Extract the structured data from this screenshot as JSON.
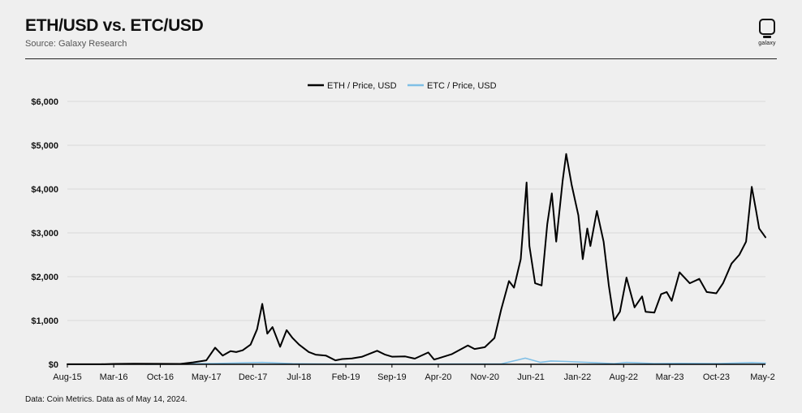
{
  "header": {
    "title": "ETH/USD vs. ETC/USD",
    "subtitle": "Source: Galaxy Research",
    "brand": "galaxy"
  },
  "footnote": "Data: Coin Metrics. Data as of May 14, 2024.",
  "colors": {
    "background": "#efefef",
    "eth": "#000000",
    "etc": "#7fbfe6",
    "grid": "#d8d8d8",
    "axis": "#000000"
  },
  "chart_data": {
    "type": "line",
    "title": "",
    "xlabel": "",
    "ylabel": "",
    "ylim": [
      0,
      6000
    ],
    "yticks": [
      0,
      1000,
      2000,
      3000,
      4000,
      5000,
      6000
    ],
    "ytick_labels": [
      "$0",
      "$1,000",
      "$2,000",
      "$3,000",
      "$4,000",
      "$5,000",
      "$6,000"
    ],
    "xlim": [
      "2015-08-01",
      "2024-05-14"
    ],
    "xticks": [
      "2015-08-01",
      "2016-03-01",
      "2016-10-01",
      "2017-05-01",
      "2017-12-01",
      "2018-07-01",
      "2019-02-01",
      "2019-09-01",
      "2020-04-01",
      "2020-11-01",
      "2021-06-01",
      "2022-01-01",
      "2022-08-01",
      "2023-03-01",
      "2023-10-01",
      "2024-05-01"
    ],
    "xtick_labels": [
      "Aug-15",
      "Mar-16",
      "Oct-16",
      "May-17",
      "Dec-17",
      "Jul-18",
      "Feb-19",
      "Sep-19",
      "Apr-20",
      "Nov-20",
      "Jun-21",
      "Jan-22",
      "Aug-22",
      "Mar-23",
      "Oct-23",
      "May-2"
    ],
    "grid": "horizontal",
    "legend": "top-center",
    "series": [
      {
        "name": "ETH / Price, USD",
        "color": "#000000",
        "points": [
          [
            "2015-08-01",
            1
          ],
          [
            "2016-01-01",
            1
          ],
          [
            "2016-03-01",
            10
          ],
          [
            "2016-06-01",
            14
          ],
          [
            "2016-10-01",
            12
          ],
          [
            "2017-01-01",
            10
          ],
          [
            "2017-03-01",
            45
          ],
          [
            "2017-05-01",
            90
          ],
          [
            "2017-06-10",
            380
          ],
          [
            "2017-07-15",
            200
          ],
          [
            "2017-08-20",
            300
          ],
          [
            "2017-09-15",
            280
          ],
          [
            "2017-10-15",
            320
          ],
          [
            "2017-11-20",
            450
          ],
          [
            "2017-12-20",
            800
          ],
          [
            "2018-01-13",
            1380
          ],
          [
            "2018-02-05",
            700
          ],
          [
            "2018-03-01",
            850
          ],
          [
            "2018-04-05",
            400
          ],
          [
            "2018-05-05",
            780
          ],
          [
            "2018-06-01",
            600
          ],
          [
            "2018-07-01",
            450
          ],
          [
            "2018-08-15",
            280
          ],
          [
            "2018-09-15",
            220
          ],
          [
            "2018-11-01",
            200
          ],
          [
            "2018-12-15",
            90
          ],
          [
            "2019-01-15",
            120
          ],
          [
            "2019-03-01",
            135
          ],
          [
            "2019-04-15",
            170
          ],
          [
            "2019-06-25",
            310
          ],
          [
            "2019-08-01",
            220
          ],
          [
            "2019-09-01",
            175
          ],
          [
            "2019-11-01",
            180
          ],
          [
            "2019-12-15",
            130
          ],
          [
            "2020-02-15",
            270
          ],
          [
            "2020-03-13",
            110
          ],
          [
            "2020-04-01",
            135
          ],
          [
            "2020-06-01",
            230
          ],
          [
            "2020-08-15",
            430
          ],
          [
            "2020-09-15",
            350
          ],
          [
            "2020-11-01",
            390
          ],
          [
            "2020-12-15",
            600
          ],
          [
            "2021-01-15",
            1250
          ],
          [
            "2021-02-20",
            1900
          ],
          [
            "2021-03-15",
            1750
          ],
          [
            "2021-04-15",
            2400
          ],
          [
            "2021-05-12",
            4150
          ],
          [
            "2021-05-25",
            2700
          ],
          [
            "2021-06-20",
            1850
          ],
          [
            "2021-07-20",
            1800
          ],
          [
            "2021-08-15",
            3200
          ],
          [
            "2021-09-05",
            3900
          ],
          [
            "2021-09-25",
            2800
          ],
          [
            "2021-10-25",
            4200
          ],
          [
            "2021-11-10",
            4800
          ],
          [
            "2021-12-05",
            4100
          ],
          [
            "2022-01-05",
            3400
          ],
          [
            "2022-01-25",
            2400
          ],
          [
            "2022-02-15",
            3100
          ],
          [
            "2022-03-01",
            2700
          ],
          [
            "2022-03-31",
            3500
          ],
          [
            "2022-05-01",
            2800
          ],
          [
            "2022-05-25",
            1800
          ],
          [
            "2022-06-18",
            1000
          ],
          [
            "2022-07-15",
            1200
          ],
          [
            "2022-08-14",
            1980
          ],
          [
            "2022-09-20",
            1300
          ],
          [
            "2022-10-25",
            1550
          ],
          [
            "2022-11-10",
            1200
          ],
          [
            "2022-12-20",
            1180
          ],
          [
            "2023-01-20",
            1600
          ],
          [
            "2023-02-15",
            1650
          ],
          [
            "2023-03-10",
            1450
          ],
          [
            "2023-04-15",
            2100
          ],
          [
            "2023-06-01",
            1850
          ],
          [
            "2023-07-15",
            1950
          ],
          [
            "2023-08-18",
            1650
          ],
          [
            "2023-10-01",
            1620
          ],
          [
            "2023-11-01",
            1850
          ],
          [
            "2023-12-10",
            2300
          ],
          [
            "2024-01-15",
            2500
          ],
          [
            "2024-02-15",
            2800
          ],
          [
            "2024-03-12",
            4050
          ],
          [
            "2024-04-01",
            3500
          ],
          [
            "2024-04-15",
            3100
          ],
          [
            "2024-05-14",
            2900
          ]
        ]
      },
      {
        "name": "ETC / Price, USD",
        "color": "#7fbfe6",
        "points": [
          [
            "2016-07-25",
            2
          ],
          [
            "2017-06-01",
            18
          ],
          [
            "2018-01-13",
            42
          ],
          [
            "2018-06-01",
            15
          ],
          [
            "2019-01-01",
            5
          ],
          [
            "2020-06-01",
            7
          ],
          [
            "2021-01-15",
            10
          ],
          [
            "2021-05-06",
            140
          ],
          [
            "2021-07-15",
            45
          ],
          [
            "2021-09-01",
            75
          ],
          [
            "2021-11-10",
            65
          ],
          [
            "2022-03-01",
            40
          ],
          [
            "2022-06-18",
            15
          ],
          [
            "2022-08-14",
            42
          ],
          [
            "2022-12-20",
            16
          ],
          [
            "2023-04-15",
            22
          ],
          [
            "2023-10-01",
            16
          ],
          [
            "2024-03-12",
            38
          ],
          [
            "2024-05-14",
            27
          ]
        ]
      }
    ]
  }
}
